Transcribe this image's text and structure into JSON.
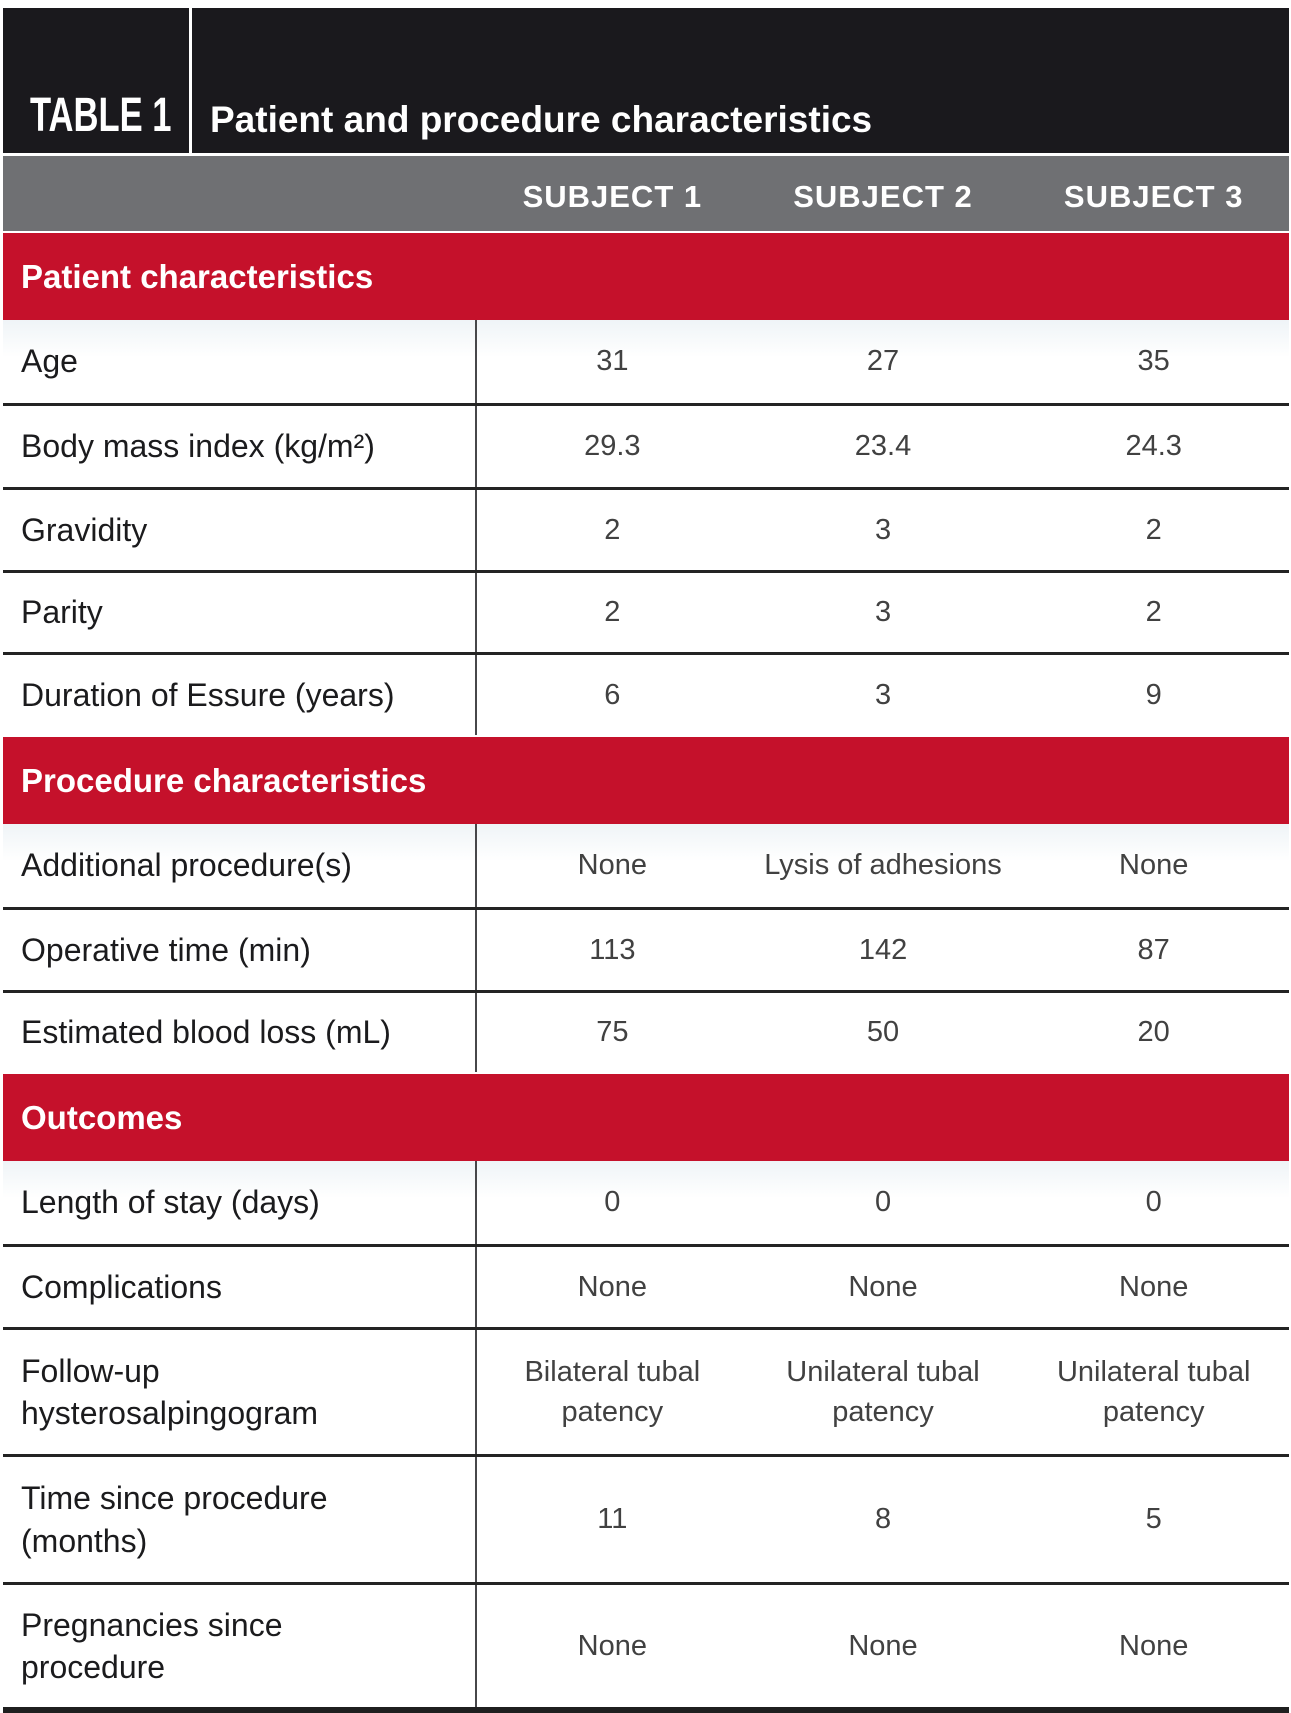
{
  "header": {
    "table_label": "TABLE 1",
    "title": "Patient and procedure characteristics"
  },
  "column_headers": [
    "SUBJECT 1",
    "SUBJECT 2",
    "SUBJECT 3"
  ],
  "sections": [
    {
      "title": "Patient characteristics",
      "rows": [
        {
          "label": "Age",
          "values": [
            "31",
            "27",
            "35"
          ]
        },
        {
          "label": "Body mass index (kg/m²)",
          "values": [
            "29.3",
            "23.4",
            "24.3"
          ]
        },
        {
          "label": "Gravidity",
          "values": [
            "2",
            "3",
            "2"
          ]
        },
        {
          "label": "Parity",
          "values": [
            "2",
            "3",
            "2"
          ]
        },
        {
          "label": "Duration of Essure (years)",
          "values": [
            "6",
            "3",
            "9"
          ]
        }
      ]
    },
    {
      "title": "Procedure characteristics",
      "rows": [
        {
          "label": "Additional procedure(s)",
          "values": [
            "None",
            "Lysis of adhesions",
            "None"
          ]
        },
        {
          "label": "Operative time (min)",
          "values": [
            "113",
            "142",
            "87"
          ]
        },
        {
          "label": "Estimated blood loss (mL)",
          "values": [
            "75",
            "50",
            "20"
          ]
        }
      ]
    },
    {
      "title": "Outcomes",
      "rows": [
        {
          "label": "Length of stay (days)",
          "values": [
            "0",
            "0",
            "0"
          ]
        },
        {
          "label": "Complications",
          "values": [
            "None",
            "None",
            "None"
          ]
        },
        {
          "label": "Follow-up\nhysterosalpingogram",
          "values": [
            "Bilateral tubal\npatency",
            "Unilateral tubal\npatency",
            "Unilateral tubal\npatency"
          ]
        },
        {
          "label": "Time since procedure\n(months)",
          "values": [
            "11",
            "8",
            "5"
          ]
        },
        {
          "label": "Pregnancies since\nprocedure",
          "values": [
            "None",
            "None",
            "None"
          ]
        }
      ]
    }
  ],
  "colors": {
    "band_black": "#1A191D",
    "band_gray": "#6F7073",
    "band_red": "#C5112B",
    "separator": "#232323",
    "divider": "#47474A",
    "label_text": "#1B1B1D",
    "value_text": "#414141",
    "header_text": "#FFFFFF"
  }
}
